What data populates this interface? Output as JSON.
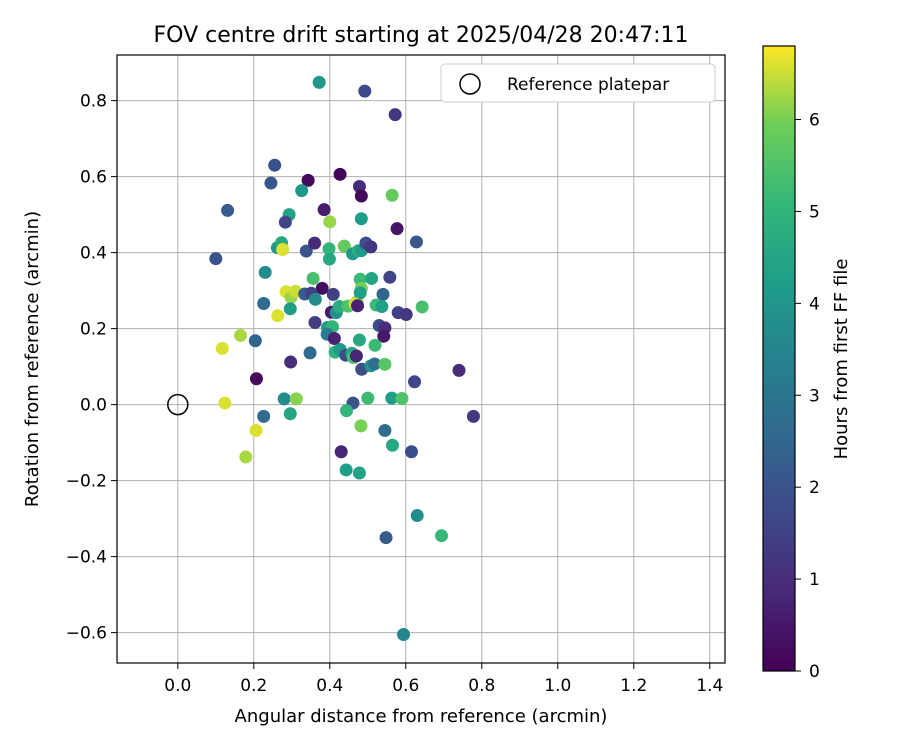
{
  "chart_data": {
    "type": "scatter",
    "title": "FOV centre drift starting at 2025/04/28 20:47:11",
    "xlabel": "Angular distance from reference (arcmin)",
    "ylabel": "Rotation from reference (arcmin)",
    "xlim": [
      -0.16,
      1.44
    ],
    "ylim": [
      -0.68,
      0.92
    ],
    "xticks": [
      0.0,
      0.2,
      0.4,
      0.6,
      0.8,
      1.0,
      1.2,
      1.4
    ],
    "xtick_labels": [
      "0.0",
      "0.2",
      "0.4",
      "0.6",
      "0.8",
      "1.0",
      "1.2",
      "1.4"
    ],
    "yticks": [
      -0.6,
      -0.4,
      -0.2,
      0.0,
      0.2,
      0.4,
      0.6,
      0.8
    ],
    "ytick_labels": [
      "−0.6",
      "−0.4",
      "−0.2",
      "0.0",
      "0.2",
      "0.4",
      "0.6",
      "0.8"
    ],
    "grid": true,
    "legend": {
      "placement": "top-right",
      "entries": [
        {
          "label": "Reference platepar",
          "marker": "open-circle"
        }
      ]
    },
    "reference_point": {
      "x": 0.0,
      "y": 0.0
    },
    "colorbar": {
      "label": "Hours from first FF file",
      "colormap": "viridis",
      "range": [
        0,
        6.8
      ],
      "ticks": [
        0,
        1,
        2,
        3,
        4,
        5,
        6
      ],
      "tick_labels": [
        "0",
        "1",
        "2",
        "3",
        "4",
        "5",
        "6"
      ]
    },
    "points": [
      {
        "x": 0.372,
        "y": 0.848,
        "h": 4.0
      },
      {
        "x": 0.492,
        "y": 0.825,
        "h": 1.7
      },
      {
        "x": 0.572,
        "y": 0.763,
        "h": 1.2
      },
      {
        "x": 0.255,
        "y": 0.63,
        "h": 1.9
      },
      {
        "x": 0.245,
        "y": 0.583,
        "h": 2.1
      },
      {
        "x": 0.343,
        "y": 0.59,
        "h": 0.2
      },
      {
        "x": 0.427,
        "y": 0.606,
        "h": 0.1
      },
      {
        "x": 0.478,
        "y": 0.574,
        "h": 1.0
      },
      {
        "x": 0.483,
        "y": 0.549,
        "h": 0.2
      },
      {
        "x": 0.564,
        "y": 0.551,
        "h": 5.8
      },
      {
        "x": 0.131,
        "y": 0.511,
        "h": 2.2
      },
      {
        "x": 0.326,
        "y": 0.563,
        "h": 4.0
      },
      {
        "x": 0.385,
        "y": 0.513,
        "h": 0.6
      },
      {
        "x": 0.293,
        "y": 0.5,
        "h": 4.4
      },
      {
        "x": 0.283,
        "y": 0.48,
        "h": 1.6
      },
      {
        "x": 0.483,
        "y": 0.489,
        "h": 4.2
      },
      {
        "x": 0.4,
        "y": 0.481,
        "h": 6.2
      },
      {
        "x": 0.577,
        "y": 0.463,
        "h": 0.4
      },
      {
        "x": 0.628,
        "y": 0.428,
        "h": 2.1
      },
      {
        "x": 0.262,
        "y": 0.413,
        "h": 4.0
      },
      {
        "x": 0.273,
        "y": 0.426,
        "h": 4.6
      },
      {
        "x": 0.276,
        "y": 0.408,
        "h": 6.6
      },
      {
        "x": 0.338,
        "y": 0.404,
        "h": 2.0
      },
      {
        "x": 0.36,
        "y": 0.425,
        "h": 0.9
      },
      {
        "x": 0.398,
        "y": 0.41,
        "h": 5.0
      },
      {
        "x": 0.438,
        "y": 0.417,
        "h": 5.8
      },
      {
        "x": 0.46,
        "y": 0.397,
        "h": 4.1
      },
      {
        "x": 0.475,
        "y": 0.405,
        "h": 4.8
      },
      {
        "x": 0.483,
        "y": 0.405,
        "h": 4.1
      },
      {
        "x": 0.495,
        "y": 0.425,
        "h": 1.8
      },
      {
        "x": 0.508,
        "y": 0.415,
        "h": 1.2
      },
      {
        "x": 0.1,
        "y": 0.384,
        "h": 2.0
      },
      {
        "x": 0.399,
        "y": 0.383,
        "h": 4.6
      },
      {
        "x": 0.23,
        "y": 0.348,
        "h": 3.7
      },
      {
        "x": 0.356,
        "y": 0.332,
        "h": 5.4
      },
      {
        "x": 0.48,
        "y": 0.33,
        "h": 5.2
      },
      {
        "x": 0.51,
        "y": 0.332,
        "h": 4.5
      },
      {
        "x": 0.558,
        "y": 0.335,
        "h": 1.6
      },
      {
        "x": 0.38,
        "y": 0.306,
        "h": 0.3
      },
      {
        "x": 0.483,
        "y": 0.306,
        "h": 6.0
      },
      {
        "x": 0.285,
        "y": 0.297,
        "h": 6.6
      },
      {
        "x": 0.298,
        "y": 0.282,
        "h": 6.2
      },
      {
        "x": 0.31,
        "y": 0.298,
        "h": 6.5
      },
      {
        "x": 0.334,
        "y": 0.291,
        "h": 2.3
      },
      {
        "x": 0.351,
        "y": 0.293,
        "h": 1.5
      },
      {
        "x": 0.362,
        "y": 0.277,
        "h": 3.7
      },
      {
        "x": 0.409,
        "y": 0.29,
        "h": 1.5
      },
      {
        "x": 0.472,
        "y": 0.271,
        "h": 6.3
      },
      {
        "x": 0.48,
        "y": 0.294,
        "h": 4.3
      },
      {
        "x": 0.54,
        "y": 0.29,
        "h": 2.5
      },
      {
        "x": 0.226,
        "y": 0.266,
        "h": 2.6
      },
      {
        "x": 0.296,
        "y": 0.252,
        "h": 4.3
      },
      {
        "x": 0.404,
        "y": 0.243,
        "h": 0.6
      },
      {
        "x": 0.417,
        "y": 0.242,
        "h": 3.9
      },
      {
        "x": 0.425,
        "y": 0.258,
        "h": 4.8
      },
      {
        "x": 0.448,
        "y": 0.259,
        "h": 5.5
      },
      {
        "x": 0.466,
        "y": 0.265,
        "h": 6.5
      },
      {
        "x": 0.473,
        "y": 0.26,
        "h": 0.7
      },
      {
        "x": 0.522,
        "y": 0.262,
        "h": 5.2
      },
      {
        "x": 0.537,
        "y": 0.258,
        "h": 4.3
      },
      {
        "x": 0.58,
        "y": 0.242,
        "h": 1.5
      },
      {
        "x": 0.601,
        "y": 0.237,
        "h": 1.2
      },
      {
        "x": 0.643,
        "y": 0.257,
        "h": 5.4
      },
      {
        "x": 0.263,
        "y": 0.234,
        "h": 6.6
      },
      {
        "x": 0.361,
        "y": 0.216,
        "h": 1.4
      },
      {
        "x": 0.394,
        "y": 0.203,
        "h": 4.1
      },
      {
        "x": 0.407,
        "y": 0.205,
        "h": 5.0
      },
      {
        "x": 0.53,
        "y": 0.208,
        "h": 1.8
      },
      {
        "x": 0.545,
        "y": 0.202,
        "h": 1.0
      },
      {
        "x": 0.165,
        "y": 0.182,
        "h": 6.3
      },
      {
        "x": 0.393,
        "y": 0.185,
        "h": 3.2
      },
      {
        "x": 0.412,
        "y": 0.174,
        "h": 0.7
      },
      {
        "x": 0.478,
        "y": 0.17,
        "h": 4.6
      },
      {
        "x": 0.542,
        "y": 0.18,
        "h": 0.5
      },
      {
        "x": 0.204,
        "y": 0.168,
        "h": 2.5
      },
      {
        "x": 0.117,
        "y": 0.148,
        "h": 6.6
      },
      {
        "x": 0.414,
        "y": 0.138,
        "h": 4.9
      },
      {
        "x": 0.427,
        "y": 0.145,
        "h": 4.1
      },
      {
        "x": 0.442,
        "y": 0.13,
        "h": 1.8
      },
      {
        "x": 0.458,
        "y": 0.135,
        "h": 4.5
      },
      {
        "x": 0.462,
        "y": 0.124,
        "h": 5.4
      },
      {
        "x": 0.47,
        "y": 0.128,
        "h": 0.8
      },
      {
        "x": 0.519,
        "y": 0.156,
        "h": 5.2
      },
      {
        "x": 0.348,
        "y": 0.136,
        "h": 2.6
      },
      {
        "x": 0.297,
        "y": 0.112,
        "h": 1.0
      },
      {
        "x": 0.484,
        "y": 0.093,
        "h": 1.8
      },
      {
        "x": 0.508,
        "y": 0.102,
        "h": 3.9
      },
      {
        "x": 0.518,
        "y": 0.107,
        "h": 2.8
      },
      {
        "x": 0.545,
        "y": 0.106,
        "h": 5.6
      },
      {
        "x": 0.74,
        "y": 0.09,
        "h": 0.9
      },
      {
        "x": 0.207,
        "y": 0.068,
        "h": 0.2
      },
      {
        "x": 0.623,
        "y": 0.06,
        "h": 1.6
      },
      {
        "x": 0.124,
        "y": 0.004,
        "h": 6.6
      },
      {
        "x": 0.28,
        "y": 0.015,
        "h": 3.7
      },
      {
        "x": 0.312,
        "y": 0.015,
        "h": 6.1
      },
      {
        "x": 0.461,
        "y": 0.004,
        "h": 2.0
      },
      {
        "x": 0.5,
        "y": 0.017,
        "h": 5.2
      },
      {
        "x": 0.563,
        "y": 0.017,
        "h": 4.3
      },
      {
        "x": 0.59,
        "y": 0.016,
        "h": 5.5
      },
      {
        "x": 0.296,
        "y": -0.024,
        "h": 4.5
      },
      {
        "x": 0.444,
        "y": -0.016,
        "h": 5.0
      },
      {
        "x": 0.226,
        "y": -0.031,
        "h": 2.6
      },
      {
        "x": 0.778,
        "y": -0.031,
        "h": 1.3
      },
      {
        "x": 0.206,
        "y": -0.068,
        "h": 6.6
      },
      {
        "x": 0.482,
        "y": -0.056,
        "h": 6.0
      },
      {
        "x": 0.545,
        "y": -0.068,
        "h": 2.7
      },
      {
        "x": 0.565,
        "y": -0.107,
        "h": 4.6
      },
      {
        "x": 0.43,
        "y": -0.124,
        "h": 0.8
      },
      {
        "x": 0.615,
        "y": -0.124,
        "h": 1.9
      },
      {
        "x": 0.179,
        "y": -0.138,
        "h": 6.3
      },
      {
        "x": 0.443,
        "y": -0.172,
        "h": 4.3
      },
      {
        "x": 0.478,
        "y": -0.18,
        "h": 4.4
      },
      {
        "x": 0.63,
        "y": -0.292,
        "h": 3.7
      },
      {
        "x": 0.694,
        "y": -0.345,
        "h": 5.1
      },
      {
        "x": 0.548,
        "y": -0.35,
        "h": 2.2
      },
      {
        "x": 0.594,
        "y": -0.605,
        "h": 3.5
      }
    ]
  }
}
